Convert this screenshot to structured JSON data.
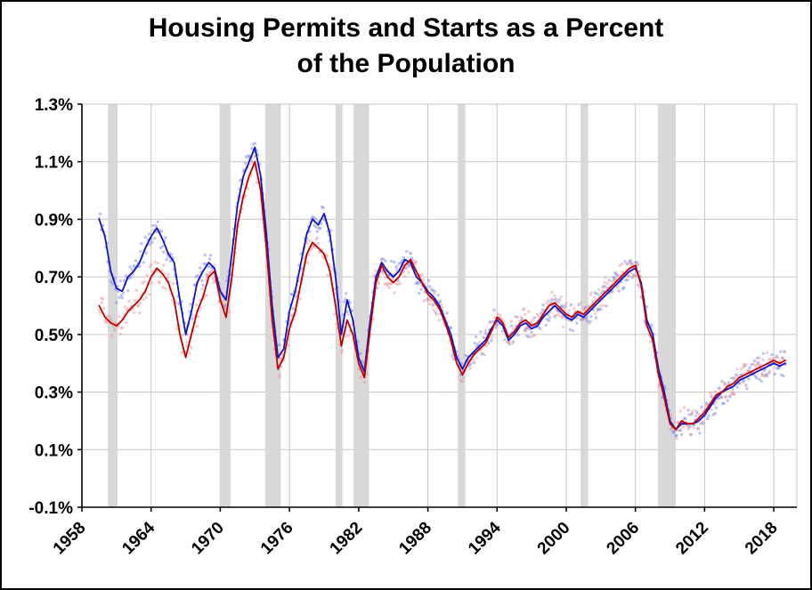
{
  "title_line1": "Housing Permits and Starts as a Percent",
  "title_line2": "of the Population",
  "chart_data": {
    "type": "line",
    "title": "Housing Permits and Starts as a Percent of the Population",
    "xlabel": "",
    "ylabel": "",
    "xlim": [
      1958,
      2020
    ],
    "ylim": [
      -0.1,
      1.3
    ],
    "grid": true,
    "legend_position": "none",
    "x_ticks": [
      1958,
      1964,
      1970,
      1976,
      1982,
      1988,
      1994,
      2000,
      2006,
      2012,
      2018
    ],
    "y_ticks": [
      -0.1,
      0.1,
      0.3,
      0.5,
      0.7,
      0.9,
      1.1,
      1.3
    ],
    "y_tick_labels": [
      "-0.1%",
      "0.1%",
      "0.3%",
      "0.5%",
      "0.7%",
      "0.9%",
      "1.1%",
      "1.3%"
    ],
    "recession_bands": [
      [
        1960.25,
        1961.1
      ],
      [
        1969.95,
        1970.9
      ],
      [
        1973.9,
        1975.25
      ],
      [
        1980.0,
        1980.6
      ],
      [
        1981.55,
        1982.9
      ],
      [
        1990.6,
        1991.25
      ],
      [
        2001.25,
        2001.9
      ],
      [
        2007.95,
        2009.5
      ]
    ],
    "band_color": "#d6d6d6",
    "x0": 1959.5,
    "dx": 0.5,
    "series": [
      {
        "name": "Housing Permits",
        "color": "#1212c8",
        "dot_color": "#6a7ce8",
        "values": [
          0.9,
          0.84,
          0.72,
          0.66,
          0.65,
          0.7,
          0.72,
          0.75,
          0.8,
          0.84,
          0.87,
          0.83,
          0.78,
          0.75,
          0.62,
          0.5,
          0.58,
          0.68,
          0.72,
          0.75,
          0.73,
          0.65,
          0.62,
          0.78,
          0.95,
          1.05,
          1.1,
          1.15,
          1.05,
          0.85,
          0.6,
          0.42,
          0.45,
          0.58,
          0.65,
          0.75,
          0.85,
          0.9,
          0.88,
          0.92,
          0.85,
          0.7,
          0.5,
          0.62,
          0.55,
          0.42,
          0.37,
          0.55,
          0.7,
          0.75,
          0.72,
          0.7,
          0.72,
          0.76,
          0.75,
          0.7,
          0.68,
          0.65,
          0.63,
          0.6,
          0.55,
          0.5,
          0.42,
          0.38,
          0.42,
          0.44,
          0.46,
          0.48,
          0.52,
          0.55,
          0.53,
          0.48,
          0.5,
          0.53,
          0.54,
          0.52,
          0.53,
          0.56,
          0.58,
          0.6,
          0.58,
          0.56,
          0.55,
          0.57,
          0.56,
          0.58,
          0.6,
          0.62,
          0.64,
          0.66,
          0.68,
          0.7,
          0.72,
          0.73,
          0.68,
          0.55,
          0.5,
          0.38,
          0.3,
          0.2,
          0.17,
          0.19,
          0.19,
          0.19,
          0.2,
          0.22,
          0.25,
          0.28,
          0.3,
          0.31,
          0.32,
          0.34,
          0.35,
          0.36,
          0.37,
          0.38,
          0.39,
          0.4,
          0.39,
          0.4
        ]
      },
      {
        "name": "Housing Starts",
        "color": "#c00000",
        "dot_color": "#e89090",
        "values": [
          0.6,
          0.56,
          0.54,
          0.53,
          0.55,
          0.58,
          0.6,
          0.62,
          0.65,
          0.7,
          0.73,
          0.71,
          0.68,
          0.62,
          0.5,
          0.42,
          0.5,
          0.58,
          0.63,
          0.7,
          0.72,
          0.62,
          0.56,
          0.7,
          0.88,
          0.98,
          1.05,
          1.1,
          1.0,
          0.8,
          0.55,
          0.38,
          0.42,
          0.52,
          0.58,
          0.68,
          0.78,
          0.82,
          0.8,
          0.78,
          0.72,
          0.6,
          0.46,
          0.55,
          0.5,
          0.4,
          0.35,
          0.52,
          0.68,
          0.74,
          0.7,
          0.68,
          0.7,
          0.74,
          0.76,
          0.72,
          0.68,
          0.64,
          0.62,
          0.59,
          0.54,
          0.48,
          0.4,
          0.36,
          0.4,
          0.43,
          0.45,
          0.47,
          0.51,
          0.56,
          0.54,
          0.49,
          0.51,
          0.54,
          0.55,
          0.53,
          0.54,
          0.57,
          0.6,
          0.61,
          0.59,
          0.57,
          0.56,
          0.58,
          0.57,
          0.59,
          0.61,
          0.63,
          0.65,
          0.67,
          0.69,
          0.71,
          0.73,
          0.74,
          0.67,
          0.53,
          0.48,
          0.36,
          0.28,
          0.19,
          0.17,
          0.2,
          0.19,
          0.19,
          0.21,
          0.23,
          0.26,
          0.29,
          0.3,
          0.32,
          0.33,
          0.35,
          0.36,
          0.37,
          0.38,
          0.39,
          0.4,
          0.41,
          0.4,
          0.41
        ]
      }
    ]
  },
  "colors": {
    "grid": "#c6c6c6",
    "axis": "#000000",
    "background": "#ffffff",
    "tick_label": "#000000"
  }
}
